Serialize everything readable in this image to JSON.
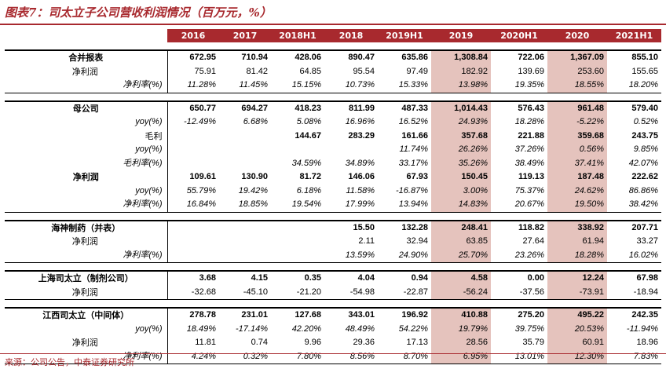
{
  "title": "图表7：司太立子公司营收利润情况（百万元，%）",
  "source": "来源：公司公告，中泰证券研究所",
  "columns": [
    "2016",
    "2017",
    "2018H1",
    "2018",
    "2019H1",
    "2019",
    "2020H1",
    "2020",
    "2021H1"
  ],
  "highlight_columns": [
    "2019",
    "2020"
  ],
  "sections": [
    {
      "rows": [
        {
          "label": "合并报表",
          "style": "main",
          "values": [
            "672.95",
            "710.94",
            "428.06",
            "890.47",
            "635.86",
            "1,308.84",
            "722.06",
            "1,367.09",
            "855.10"
          ]
        },
        {
          "label": "净利润",
          "style": "sub-serif",
          "values": [
            "75.91",
            "81.42",
            "64.85",
            "95.54",
            "97.49",
            "182.92",
            "139.69",
            "253.60",
            "155.65"
          ]
        },
        {
          "label": "净利率(%)",
          "style": "sub-italic",
          "values": [
            "11.28%",
            "11.45%",
            "15.15%",
            "10.73%",
            "15.33%",
            "13.98%",
            "19.35%",
            "18.55%",
            "18.20%"
          ]
        }
      ]
    },
    {
      "rows": [
        {
          "label": "母公司",
          "style": "main",
          "values": [
            "650.77",
            "694.27",
            "418.23",
            "811.99",
            "487.33",
            "1,014.43",
            "576.43",
            "961.48",
            "579.40"
          ]
        },
        {
          "label": "yoy(%)",
          "style": "sub-italic",
          "values": [
            "-12.49%",
            "6.68%",
            "5.08%",
            "16.96%",
            "16.52%",
            "24.93%",
            "18.28%",
            "-5.22%",
            "0.52%"
          ]
        },
        {
          "label": "毛利",
          "style": "sub-serif-bold",
          "values": [
            "",
            "",
            "144.67",
            "283.29",
            "161.66",
            "357.68",
            "221.88",
            "359.68",
            "243.75"
          ]
        },
        {
          "label": "yoy(%)",
          "style": "sub-italic",
          "values": [
            "",
            "",
            "",
            "",
            "11.74%",
            "26.26%",
            "37.26%",
            "0.56%",
            "9.85%"
          ]
        },
        {
          "label": "毛利率(%)",
          "style": "sub-italic",
          "values": [
            "",
            "",
            "34.59%",
            "34.89%",
            "33.17%",
            "35.26%",
            "38.49%",
            "37.41%",
            "42.07%"
          ]
        },
        {
          "label": "净利润",
          "style": "main",
          "values": [
            "109.61",
            "130.90",
            "81.72",
            "146.06",
            "67.93",
            "150.45",
            "119.13",
            "187.48",
            "222.62"
          ]
        },
        {
          "label": "yoy(%)",
          "style": "sub-italic",
          "values": [
            "55.79%",
            "19.42%",
            "6.18%",
            "11.58%",
            "-16.87%",
            "3.00%",
            "75.37%",
            "24.62%",
            "86.86%"
          ]
        },
        {
          "label": "净利率(%)",
          "style": "sub-italic",
          "values": [
            "16.84%",
            "18.85%",
            "19.54%",
            "17.99%",
            "13.94%",
            "14.83%",
            "20.67%",
            "19.50%",
            "38.42%"
          ]
        }
      ]
    },
    {
      "rows": [
        {
          "label": "海神制药（并表）",
          "style": "main",
          "values": [
            "",
            "",
            "",
            "15.50",
            "132.28",
            "248.41",
            "118.82",
            "338.92",
            "207.71"
          ]
        },
        {
          "label": "净利润",
          "style": "sub-serif",
          "values": [
            "",
            "",
            "",
            "2.11",
            "32.94",
            "63.85",
            "27.64",
            "61.94",
            "33.27"
          ]
        },
        {
          "label": "净利率(%)",
          "style": "sub-italic",
          "values": [
            "",
            "",
            "",
            "13.59%",
            "24.90%",
            "25.70%",
            "23.26%",
            "18.28%",
            "16.02%"
          ]
        }
      ]
    },
    {
      "rows": [
        {
          "label": "上海司太立（制剂公司）",
          "style": "main",
          "values": [
            "3.68",
            "4.15",
            "0.35",
            "4.04",
            "0.94",
            "4.58",
            "0.00",
            "12.24",
            "67.98"
          ]
        },
        {
          "label": "净利润",
          "style": "sub-serif",
          "values": [
            "-32.68",
            "-45.10",
            "-21.20",
            "-54.98",
            "-22.87",
            "-56.24",
            "-37.56",
            "-73.91",
            "-18.94"
          ]
        }
      ]
    },
    {
      "rows": [
        {
          "label": "江西司太立（中间体）",
          "style": "main",
          "values": [
            "278.78",
            "231.01",
            "127.68",
            "343.01",
            "196.92",
            "410.88",
            "275.20",
            "495.22",
            "242.35"
          ]
        },
        {
          "label": "yoy(%)",
          "style": "sub-italic",
          "values": [
            "18.49%",
            "-17.14%",
            "42.20%",
            "48.49%",
            "54.22%",
            "19.79%",
            "39.75%",
            "20.53%",
            "-11.94%"
          ]
        },
        {
          "label": "净利润",
          "style": "sub-serif",
          "values": [
            "11.81",
            "0.74",
            "9.96",
            "29.36",
            "17.13",
            "28.56",
            "35.79",
            "60.91",
            "18.96"
          ]
        },
        {
          "label": "净利率(%)",
          "style": "sub-italic",
          "values": [
            "4.24%",
            "0.32%",
            "7.80%",
            "8.56%",
            "8.70%",
            "6.95%",
            "13.01%",
            "12.30%",
            "7.83%"
          ]
        }
      ]
    }
  ]
}
